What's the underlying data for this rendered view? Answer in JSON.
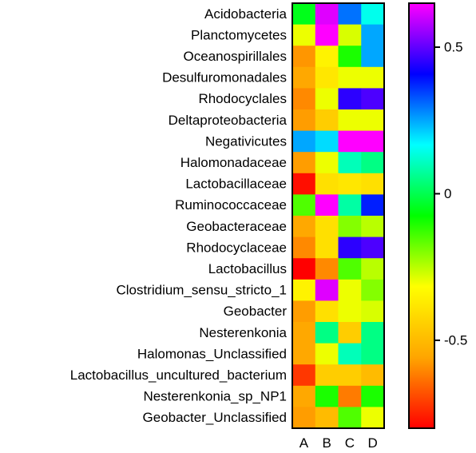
{
  "chart_data": {
    "type": "heatmap",
    "title": "",
    "xlabel": "",
    "ylabel": "",
    "columns": [
      "A",
      "B",
      "C",
      "D"
    ],
    "rows": [
      "Acidobacteria",
      "Planctomycetes",
      "Oceanospirillales",
      "Desulfuromonadales",
      "Rhodocyclales",
      "Deltaproteobacteria",
      "Negativicutes",
      "Halomonadaceae",
      "Lactobacillaceae",
      "Ruminococcaceae",
      "Geobacteraceae",
      "Rhodocyclaceae",
      "Lactobacillus",
      "Clostridium_sensu_stricto_1",
      "Geobacter",
      "Nesterenkonia",
      "Halomonas_Unclassified",
      "Lactobacillus_uncultured_bacterium",
      "Nesterenkonia_sp_NP1",
      "Geobacter_Unclassified"
    ],
    "values": [
      [
        -0.05,
        0.62,
        0.3,
        0.15
      ],
      [
        -0.3,
        0.75,
        -0.28,
        0.25
      ],
      [
        -0.58,
        -0.35,
        -0.1,
        0.25
      ],
      [
        -0.55,
        -0.38,
        -0.3,
        -0.3
      ],
      [
        -0.6,
        -0.3,
        0.45,
        0.48
      ],
      [
        -0.57,
        -0.45,
        -0.3,
        -0.3
      ],
      [
        0.25,
        0.2,
        0.7,
        0.68
      ],
      [
        -0.57,
        -0.3,
        0.1,
        0.05
      ],
      [
        -0.78,
        -0.4,
        -0.38,
        -0.4
      ],
      [
        -0.15,
        0.65,
        0.08,
        0.38
      ],
      [
        -0.55,
        -0.4,
        -0.2,
        -0.25
      ],
      [
        -0.6,
        -0.4,
        0.45,
        0.48
      ],
      [
        -0.9,
        -0.6,
        -0.15,
        -0.25
      ],
      [
        -0.35,
        0.62,
        -0.3,
        -0.2
      ],
      [
        -0.57,
        -0.4,
        -0.3,
        -0.28
      ],
      [
        -0.55,
        0.05,
        -0.45,
        0.05
      ],
      [
        -0.55,
        -0.3,
        0.1,
        0.05
      ],
      [
        -0.72,
        -0.45,
        -0.45,
        -0.5
      ],
      [
        -0.55,
        -0.1,
        -0.62,
        -0.1
      ],
      [
        -0.57,
        -0.5,
        -0.15,
        -0.3
      ]
    ],
    "colorbar": {
      "min": -0.8,
      "max": 0.65,
      "ticks": [
        0.5,
        0,
        -0.5
      ],
      "tick_labels": [
        "0.5",
        "0",
        "-0.5"
      ],
      "colors": [
        "#ff0000",
        "#ffa500",
        "#ffff00",
        "#00ff00",
        "#00ffff",
        "#0000ff",
        "#ff00ff"
      ]
    },
    "grid": false,
    "legend": "right"
  }
}
